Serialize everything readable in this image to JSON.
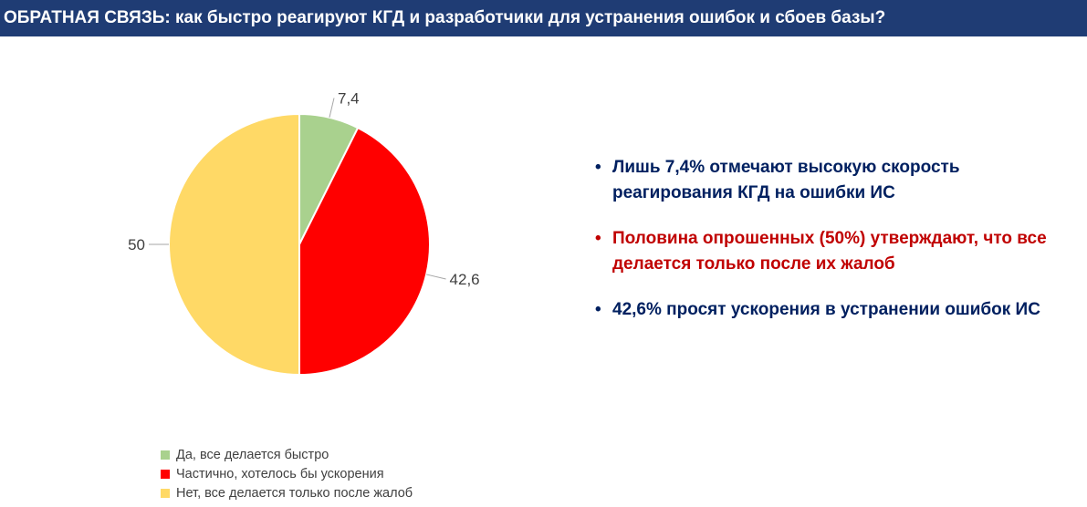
{
  "header": {
    "title": "ОБРАТНАЯ СВЯЗЬ: как быстро реагируют КГД и разработчики для устранения ошибок и сбоев базы?",
    "background": "#1f3c74"
  },
  "chart_data": {
    "type": "pie",
    "categories": [
      "Да, все делается быстро",
      "Частично, хотелось бы ускорения",
      "Нет, все делается только после жалоб"
    ],
    "values": [
      7.4,
      42.6,
      50
    ],
    "data_labels": [
      "7,4",
      "42,6",
      "50"
    ],
    "colors": [
      "#a9d18e",
      "#ff0000",
      "#ffd966"
    ],
    "legend_position": "bottom-left",
    "start_angle": "12 o'clock, clockwise"
  },
  "bullets": [
    {
      "text": "Лишь 7,4% отмечают высокую скорость реагирования КГД на ошибки ИС",
      "color": "#002060"
    },
    {
      "text": "Половина опрошенных (50%) утверждают, что все делается только после их жалоб",
      "color": "#c00000"
    },
    {
      "text": "42,6% просят ускорения в устранении ошибок ИС",
      "color": "#002060"
    }
  ]
}
